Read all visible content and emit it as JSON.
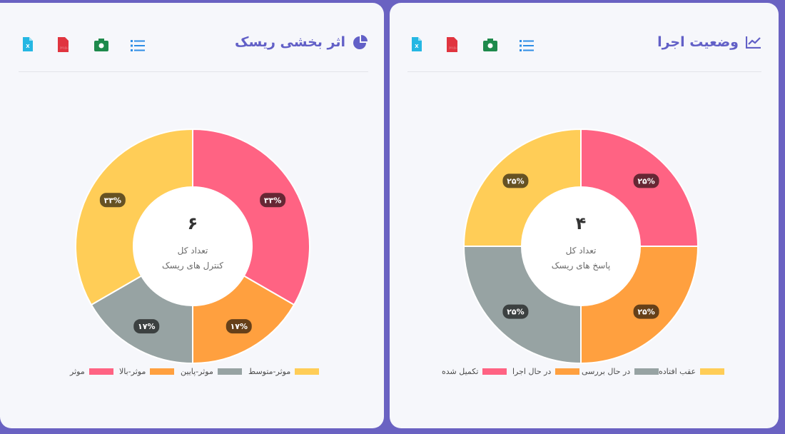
{
  "cards": [
    {
      "title": "اثر بخشی ریسک",
      "title_icon": "pie-chart-icon",
      "toolbar": [
        {
          "icon": "excel-file-icon",
          "color": "#25b7e3",
          "label": "X"
        },
        {
          "icon": "pdf-file-icon",
          "color": "#e0353f",
          "label": "PDF"
        },
        {
          "icon": "camera-icon",
          "color": "#1e8a4c"
        },
        {
          "icon": "list-icon",
          "color": "#2f8ee6"
        }
      ],
      "center": {
        "total": "۶",
        "line1": "تعداد کل",
        "line2": "کنترل های ریسک"
      },
      "chart_data": {
        "type": "pie",
        "donut": true,
        "categories": [
          "موثر",
          "موثر-بالا",
          "موثر-پایین",
          "موثر-متوسط"
        ],
        "values": [
          2,
          1,
          1,
          2
        ],
        "colors": [
          "#ff6383",
          "#ffa03f",
          "#97a3a3",
          "#ffcd57"
        ],
        "data_labels": [
          "۳۳%",
          "۱۷%",
          "۱۷%",
          "۳۳%"
        ],
        "legend_position": "bottom"
      }
    },
    {
      "title": "وضعیت اجرا",
      "title_icon": "line-chart-icon",
      "toolbar": [
        {
          "icon": "excel-file-icon",
          "color": "#25b7e3",
          "label": "X"
        },
        {
          "icon": "pdf-file-icon",
          "color": "#e0353f",
          "label": "PDF"
        },
        {
          "icon": "camera-icon",
          "color": "#1e8a4c"
        },
        {
          "icon": "list-icon",
          "color": "#2f8ee6"
        }
      ],
      "center": {
        "total": "۴",
        "line1": "تعداد کل",
        "line2": "پاسخ های ریسک"
      },
      "chart_data": {
        "type": "pie",
        "donut": true,
        "categories": [
          "تکمیل شده",
          "در حال اجرا",
          "در حال بررسی",
          "عقب افتاده"
        ],
        "values": [
          1,
          1,
          1,
          1
        ],
        "colors": [
          "#ff6383",
          "#ffa03f",
          "#97a3a3",
          "#ffcd57"
        ],
        "data_labels": [
          "۲۵%",
          "۲۵%",
          "۲۵%",
          "۲۵%"
        ],
        "legend_position": "bottom"
      }
    }
  ]
}
